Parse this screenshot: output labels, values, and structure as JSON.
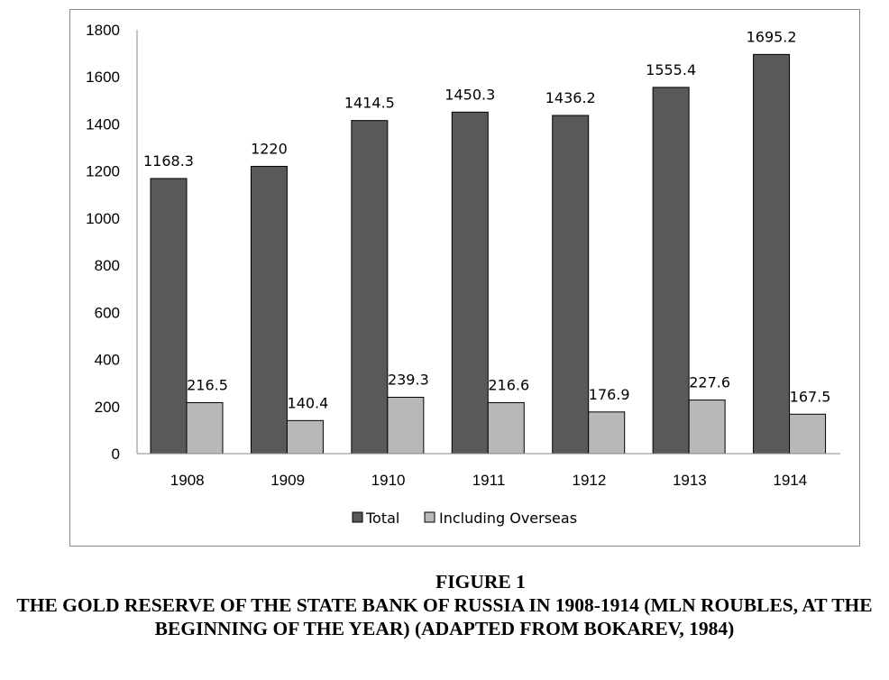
{
  "chart_data": {
    "type": "bar",
    "categories": [
      "1908",
      "1909",
      "1910",
      "1911",
      "1912",
      "1913",
      "1914"
    ],
    "series": [
      {
        "name": "Total",
        "color": "#595959",
        "values": [
          1168.3,
          1220,
          1414.5,
          1450.3,
          1436.2,
          1555.4,
          1695.2
        ]
      },
      {
        "name": "Including Overseas",
        "color": "#b8b8b8",
        "values": [
          216.5,
          140.4,
          239.3,
          216.6,
          176.9,
          227.6,
          167.5
        ]
      }
    ],
    "data_labels": [
      [
        "1168.3",
        "1220",
        "1414.5",
        "1450.3",
        "1436.2",
        "1555.4",
        "1695.2"
      ],
      [
        "216.5",
        "140.4",
        "239.3",
        "216.6",
        "176.9",
        "227.6",
        "167.5"
      ]
    ],
    "yticks": [
      "0",
      "200",
      "400",
      "600",
      "800",
      "1000",
      "1200",
      "1400",
      "1600",
      "1800"
    ],
    "ylim": [
      0,
      1800
    ],
    "grid": false,
    "legend_position": "bottom"
  },
  "caption": {
    "figure_label": "FIGURE 1",
    "text": "THE GOLD RESERVE OF THE STATE BANK OF RUSSIA IN 1908-1914 (MLN ROUBLES, AT THE BEGINNING OF THE YEAR) (ADAPTED FROM BOKAREV, 1984)"
  }
}
